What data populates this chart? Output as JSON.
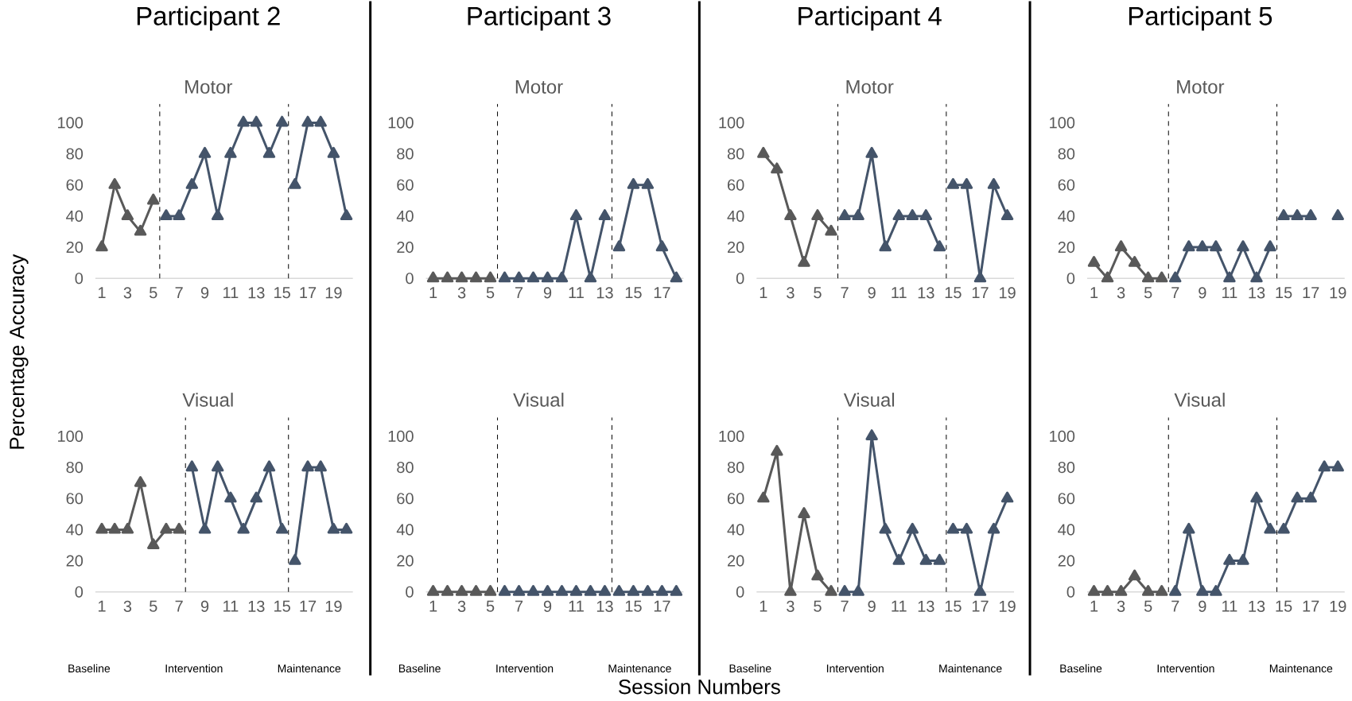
{
  "chart_data": [
    {
      "type": "line",
      "title": "Participant 2",
      "subtitle": "Motor",
      "ylabel": "Percentage Accuracy",
      "xlim": [
        0.5,
        20.5
      ],
      "ylim": [
        0,
        100
      ],
      "xticks": [
        1,
        3,
        5,
        7,
        9,
        11,
        13,
        15,
        17,
        19
      ],
      "yticks": [
        0,
        20,
        40,
        60,
        80,
        100
      ],
      "marker": "triangle",
      "ref_lines": [
        {
          "axis": "x",
          "value": 5.5,
          "color": "#000000",
          "line_style": "dashed"
        },
        {
          "axis": "x",
          "value": 15.5,
          "color": "#000000",
          "line_style": "dashed"
        }
      ],
      "series": [
        {
          "color": "#595959",
          "x": [
            1,
            2,
            3,
            4,
            5
          ],
          "values": [
            20,
            60,
            40,
            30,
            50
          ]
        },
        {
          "color": "#44546a",
          "x": [
            6,
            7,
            8,
            9,
            10,
            11,
            12,
            13,
            14,
            15
          ],
          "values": [
            40,
            40,
            60,
            80,
            40,
            80,
            100,
            100,
            80,
            100
          ]
        },
        {
          "color": "#44546a",
          "x": [
            16,
            17,
            18,
            19,
            20
          ],
          "values": [
            60,
            100,
            100,
            80,
            40
          ]
        }
      ]
    },
    {
      "type": "line",
      "title": "Participant 3",
      "subtitle": "Motor",
      "xlim": [
        0.5,
        18.5
      ],
      "ylim": [
        0,
        100
      ],
      "xticks": [
        1,
        3,
        5,
        7,
        9,
        11,
        13,
        15,
        17
      ],
      "yticks": [
        0,
        20,
        40,
        60,
        80,
        100
      ],
      "marker": "triangle",
      "ref_lines": [
        {
          "axis": "x",
          "value": 5.5,
          "color": "#000000",
          "line_style": "dashed"
        },
        {
          "axis": "x",
          "value": 13.5,
          "color": "#000000",
          "line_style": "dashed"
        }
      ],
      "series": [
        {
          "color": "#595959",
          "x": [
            1,
            2,
            3,
            4,
            5
          ],
          "values": [
            0,
            0,
            0,
            0,
            0
          ]
        },
        {
          "color": "#44546a",
          "x": [
            6,
            7,
            8,
            9,
            10,
            11,
            12,
            13
          ],
          "values": [
            0,
            0,
            0,
            0,
            0,
            40,
            0,
            40
          ]
        },
        {
          "color": "#44546a",
          "x": [
            14,
            15,
            16,
            17,
            18
          ],
          "values": [
            20,
            60,
            60,
            20,
            0
          ]
        }
      ]
    },
    {
      "type": "line",
      "title": "Participant 4",
      "subtitle": "Motor",
      "xlim": [
        0.5,
        19.5
      ],
      "ylim": [
        0,
        100
      ],
      "xticks": [
        1,
        3,
        5,
        7,
        9,
        11,
        13,
        15,
        17,
        19
      ],
      "yticks": [
        0,
        20,
        40,
        60,
        80,
        100
      ],
      "marker": "triangle",
      "ref_lines": [
        {
          "axis": "x",
          "value": 6.5,
          "color": "#000000",
          "line_style": "dashed"
        },
        {
          "axis": "x",
          "value": 14.5,
          "color": "#000000",
          "line_style": "dashed"
        }
      ],
      "series": [
        {
          "color": "#595959",
          "x": [
            1,
            2,
            3,
            4,
            5,
            6
          ],
          "values": [
            80,
            70,
            40,
            10,
            40,
            30
          ]
        },
        {
          "color": "#44546a",
          "x": [
            7,
            8,
            9,
            10,
            11,
            12,
            13,
            14
          ],
          "values": [
            40,
            40,
            80,
            20,
            40,
            40,
            40,
            20
          ]
        },
        {
          "color": "#44546a",
          "x": [
            15,
            16,
            17,
            18,
            19
          ],
          "values": [
            60,
            60,
            0,
            60,
            40
          ]
        }
      ]
    },
    {
      "type": "line",
      "title": "Participant 5",
      "subtitle": "Motor",
      "xlim": [
        0.5,
        19.5
      ],
      "ylim": [
        0,
        100
      ],
      "xticks": [
        1,
        3,
        5,
        7,
        9,
        11,
        13,
        15,
        17,
        19
      ],
      "yticks": [
        0,
        20,
        40,
        60,
        80,
        100
      ],
      "marker": "triangle",
      "ref_lines": [
        {
          "axis": "x",
          "value": 6.5,
          "color": "#000000",
          "line_style": "dashed"
        },
        {
          "axis": "x",
          "value": 14.5,
          "color": "#000000",
          "line_style": "dashed"
        }
      ],
      "series": [
        {
          "color": "#595959",
          "x": [
            1,
            2,
            3,
            4,
            5,
            6
          ],
          "values": [
            10,
            0,
            20,
            10,
            0,
            0
          ]
        },
        {
          "color": "#44546a",
          "x": [
            7,
            8,
            9,
            10,
            11,
            12,
            13,
            14
          ],
          "values": [
            0,
            20,
            20,
            20,
            0,
            20,
            0,
            20
          ]
        },
        {
          "color": "#44546a",
          "x": [
            15,
            16,
            17,
            18,
            19
          ],
          "values": [
            40,
            40,
            40,
            null,
            40
          ]
        }
      ]
    },
    {
      "type": "line",
      "title": "Visual",
      "annotations": [
        "Baseline",
        "Intervention",
        "Maintenance"
      ],
      "xlim": [
        0.5,
        20.5
      ],
      "ylim": [
        0,
        100
      ],
      "xticks": [
        1,
        3,
        5,
        7,
        9,
        11,
        13,
        15,
        17,
        19
      ],
      "yticks": [
        0,
        20,
        40,
        60,
        80,
        100
      ],
      "marker": "triangle",
      "ref_lines": [
        {
          "axis": "x",
          "value": 7.5,
          "color": "#000000",
          "line_style": "dashed"
        },
        {
          "axis": "x",
          "value": 15.5,
          "color": "#000000",
          "line_style": "dashed"
        }
      ],
      "series": [
        {
          "color": "#595959",
          "x": [
            1,
            2,
            3,
            4,
            5,
            6,
            7
          ],
          "values": [
            40,
            40,
            40,
            70,
            30,
            40,
            40
          ]
        },
        {
          "color": "#44546a",
          "x": [
            8,
            9,
            10,
            11,
            12,
            13,
            14,
            15
          ],
          "values": [
            80,
            40,
            80,
            60,
            40,
            60,
            80,
            40
          ]
        },
        {
          "color": "#44546a",
          "x": [
            16,
            17,
            18,
            19,
            20
          ],
          "values": [
            20,
            80,
            80,
            40,
            40
          ]
        }
      ]
    },
    {
      "type": "line",
      "title": "Visual",
      "xlabel": "Session Numbers",
      "annotations": [
        "Baseline",
        "Intervention",
        "Maintenance"
      ],
      "xlim": [
        0.5,
        18.5
      ],
      "ylim": [
        0,
        100
      ],
      "xticks": [
        1,
        3,
        5,
        7,
        9,
        11,
        13,
        15,
        17
      ],
      "yticks": [
        0,
        20,
        40,
        60,
        80,
        100
      ],
      "marker": "triangle",
      "ref_lines": [
        {
          "axis": "x",
          "value": 5.5,
          "color": "#000000",
          "line_style": "dashed"
        },
        {
          "axis": "x",
          "value": 13.5,
          "color": "#000000",
          "line_style": "dashed"
        }
      ],
      "series": [
        {
          "color": "#595959",
          "x": [
            1,
            2,
            3,
            4,
            5
          ],
          "values": [
            0,
            0,
            0,
            0,
            0
          ]
        },
        {
          "color": "#44546a",
          "x": [
            6,
            7,
            8,
            9,
            10,
            11,
            12,
            13
          ],
          "values": [
            0,
            0,
            0,
            0,
            0,
            0,
            0,
            0
          ]
        },
        {
          "color": "#44546a",
          "x": [
            14,
            15,
            16,
            17,
            18
          ],
          "values": [
            0,
            0,
            0,
            0,
            0
          ]
        }
      ]
    },
    {
      "type": "line",
      "title": "Visual",
      "annotations": [
        "Baseline",
        "Intervention",
        "Maintenance"
      ],
      "xlim": [
        0.5,
        19.5
      ],
      "ylim": [
        0,
        100
      ],
      "xticks": [
        1,
        3,
        5,
        7,
        9,
        11,
        13,
        15,
        17,
        19
      ],
      "yticks": [
        0,
        20,
        40,
        60,
        80,
        100
      ],
      "marker": "triangle",
      "ref_lines": [
        {
          "axis": "x",
          "value": 6.5,
          "color": "#000000",
          "line_style": "dashed"
        },
        {
          "axis": "x",
          "value": 14.5,
          "color": "#000000",
          "line_style": "dashed"
        }
      ],
      "series": [
        {
          "color": "#595959",
          "x": [
            1,
            2,
            3,
            4,
            5,
            6
          ],
          "values": [
            60,
            90,
            0,
            50,
            10,
            0
          ]
        },
        {
          "color": "#44546a",
          "x": [
            7,
            8,
            9,
            10,
            11,
            12,
            13,
            14
          ],
          "values": [
            0,
            0,
            100,
            40,
            20,
            40,
            20,
            20
          ]
        },
        {
          "color": "#44546a",
          "x": [
            15,
            16,
            17,
            18,
            19
          ],
          "values": [
            40,
            40,
            0,
            40,
            60
          ]
        }
      ]
    },
    {
      "type": "line",
      "title": "Visual",
      "annotations": [
        "Baseline",
        "Intervention",
        "Maintenance"
      ],
      "xlim": [
        0.5,
        19.5
      ],
      "ylim": [
        0,
        100
      ],
      "xticks": [
        1,
        3,
        5,
        7,
        9,
        11,
        13,
        15,
        17,
        19
      ],
      "yticks": [
        0,
        20,
        40,
        60,
        80,
        100
      ],
      "marker": "triangle",
      "ref_lines": [
        {
          "axis": "x",
          "value": 6.5,
          "color": "#000000",
          "line_style": "dashed"
        },
        {
          "axis": "x",
          "value": 14.5,
          "color": "#000000",
          "line_style": "dashed"
        }
      ],
      "series": [
        {
          "color": "#595959",
          "x": [
            1,
            2,
            3,
            4,
            5,
            6
          ],
          "values": [
            0,
            0,
            0,
            10,
            0,
            0
          ]
        },
        {
          "color": "#44546a",
          "x": [
            7,
            8,
            9,
            10,
            11,
            12,
            13,
            14
          ],
          "values": [
            0,
            40,
            0,
            0,
            20,
            20,
            60,
            40
          ]
        },
        {
          "color": "#44546a",
          "x": [
            15,
            16,
            17,
            18,
            19
          ],
          "values": [
            40,
            60,
            60,
            80,
            80
          ]
        }
      ]
    }
  ]
}
